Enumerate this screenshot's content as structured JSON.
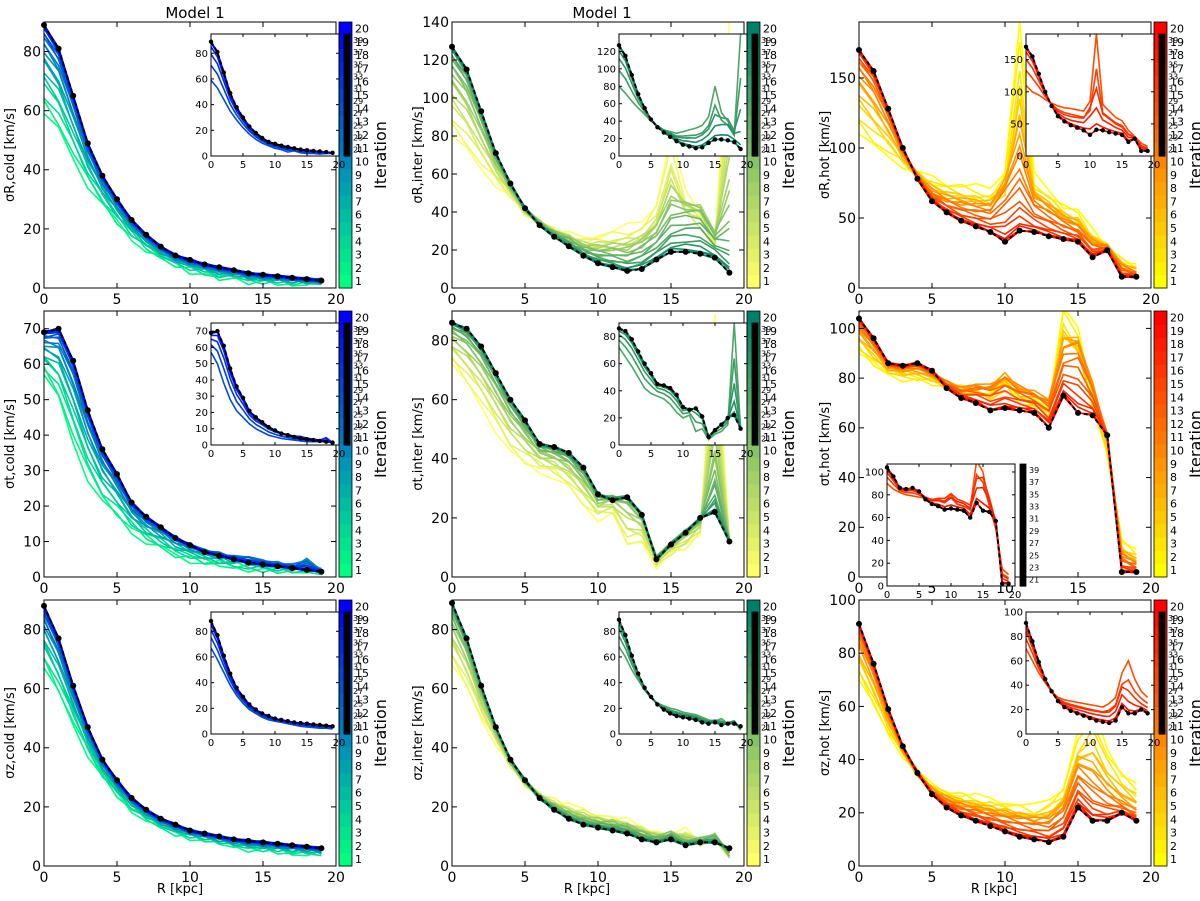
{
  "figure": {
    "col_titles": [
      "Model 1",
      "Model 1",
      ""
    ],
    "xlabel": "R [kpc]",
    "colorbar_label": "Iteration",
    "main_cbar_ticks": [
      "1",
      "2",
      "3",
      "4",
      "5",
      "6",
      "7",
      "8",
      "9",
      "10",
      "11",
      "12",
      "13",
      "14",
      "15",
      "16",
      "17",
      "18",
      "19",
      "20"
    ],
    "inset_cbar_ticks": [
      "21",
      "23",
      "25",
      "27",
      "29",
      "31",
      "33",
      "35",
      "37",
      "39"
    ],
    "x_ticks": [
      "0",
      "5",
      "10",
      "15",
      "20"
    ],
    "colormaps": {
      "cold": [
        "#00ff80",
        "#0000ff"
      ],
      "inter": [
        "#ffff66",
        "#008066"
      ],
      "hot": [
        "#ffff00",
        "#ff0000"
      ]
    },
    "final_line_color": "#000000"
  },
  "chart_data": [
    {
      "type": "line",
      "id": "sigmaR-cold",
      "component": "cold",
      "ylabel": "σR,cold [km/s]",
      "xlim": [
        0,
        20
      ],
      "ylim": [
        0,
        90
      ],
      "yticks": [
        0,
        20,
        40,
        60,
        80
      ],
      "x": [
        0,
        1,
        2,
        3,
        4,
        5,
        6,
        7,
        8,
        9,
        10,
        11,
        12,
        13,
        14,
        15,
        16,
        17,
        18,
        19
      ],
      "final": [
        89,
        81,
        65,
        49,
        38,
        30,
        23,
        18,
        14,
        11,
        9.5,
        8,
        7,
        6,
        5,
        4.5,
        4,
        3.5,
        3,
        2.5
      ],
      "first_iteration": [
        59,
        53,
        44,
        35,
        28,
        22,
        17,
        13,
        10,
        8,
        6,
        5,
        3,
        4,
        2.5,
        2,
        2,
        1.5,
        2,
        2
      ],
      "inset": {
        "ylim": [
          0,
          95
        ],
        "yticks": [
          0,
          20,
          40,
          60,
          80
        ]
      }
    },
    {
      "type": "line",
      "id": "sigmaR-inter",
      "component": "inter",
      "ylabel": "σR,inter [km/s]",
      "xlim": [
        0,
        20
      ],
      "ylim": [
        0,
        140
      ],
      "yticks": [
        0,
        20,
        40,
        60,
        80,
        100,
        120,
        140
      ],
      "x": [
        0,
        1,
        2,
        3,
        4,
        5,
        6,
        7,
        8,
        9,
        10,
        11,
        12,
        13,
        14,
        15,
        16,
        17,
        18,
        19
      ],
      "final": [
        127,
        115,
        93,
        71,
        55,
        42,
        33,
        27,
        22,
        17,
        13,
        11,
        9,
        10,
        15,
        19,
        19,
        18,
        16,
        8
      ],
      "first_iteration": [
        80,
        72,
        63,
        55,
        48,
        40,
        35,
        30,
        28,
        26,
        28,
        30,
        32,
        35,
        45,
        80,
        50,
        40,
        25,
        140
      ],
      "extreme_iteration": [
        127,
        115,
        93,
        71,
        55,
        42,
        34,
        30,
        28,
        22,
        20,
        20,
        19,
        25,
        30,
        40,
        55,
        60,
        40,
        15
      ],
      "inset": {
        "ylim": [
          0,
          140
        ],
        "yticks": [
          0,
          20,
          40,
          60,
          80,
          100,
          120
        ]
      }
    },
    {
      "type": "line",
      "id": "sigmaR-hot",
      "component": "hot",
      "ylabel": "σR,hot [km/s]",
      "xlim": [
        0,
        20
      ],
      "ylim": [
        0,
        190
      ],
      "yticks": [
        0,
        50,
        100,
        150
      ],
      "x": [
        0,
        1,
        2,
        3,
        4,
        5,
        6,
        7,
        8,
        9,
        10,
        11,
        12,
        13,
        14,
        15,
        16,
        17,
        18,
        19
      ],
      "final": [
        170,
        155,
        128,
        100,
        78,
        62,
        54,
        48,
        44,
        40,
        33,
        41,
        40,
        37,
        35,
        33,
        22,
        27,
        8,
        8
      ],
      "first_iteration": [
        110,
        100,
        95,
        88,
        82,
        78,
        75,
        74,
        72,
        70,
        85,
        190,
        80,
        70,
        60,
        55,
        40,
        30,
        20,
        15
      ],
      "extreme_iteration": [
        170,
        155,
        128,
        100,
        80,
        68,
        62,
        60,
        60,
        62,
        95,
        80,
        70,
        62,
        52,
        45,
        35,
        30,
        18,
        10
      ],
      "inset": {
        "ylim": [
          0,
          190
        ],
        "yticks": [
          0,
          50,
          100,
          150
        ]
      }
    },
    {
      "type": "line",
      "id": "sigmat-cold",
      "component": "cold",
      "ylabel": "σt,cold [km/s]",
      "xlim": [
        0,
        20
      ],
      "ylim": [
        0,
        75
      ],
      "yticks": [
        0,
        10,
        20,
        30,
        40,
        50,
        60,
        70
      ],
      "x": [
        0,
        1,
        2,
        3,
        4,
        5,
        6,
        7,
        8,
        9,
        10,
        11,
        12,
        13,
        14,
        15,
        16,
        17,
        18,
        19
      ],
      "final": [
        69,
        70,
        61,
        47,
        36,
        29,
        21,
        17,
        14,
        11,
        9,
        7,
        6,
        5,
        4,
        3.5,
        3,
        2.5,
        2,
        1.5
      ],
      "first_iteration": [
        57,
        50,
        38,
        28,
        21,
        17,
        13,
        10,
        8,
        6,
        5,
        4,
        3.5,
        3,
        2.5,
        2,
        2,
        2,
        2,
        1.5
      ],
      "extreme_iteration": [
        69,
        70,
        61,
        47,
        36,
        29,
        21,
        17,
        15,
        12,
        10,
        9,
        8,
        7,
        8,
        6,
        5,
        4,
        8,
        1.5
      ],
      "inset": {
        "ylim": [
          0,
          75
        ],
        "yticks": [
          0,
          10,
          20,
          30,
          40,
          50,
          60,
          70
        ]
      }
    },
    {
      "type": "line",
      "id": "sigmat-inter",
      "component": "inter",
      "ylabel": "σt,inter [km/s]",
      "xlim": [
        0,
        20
      ],
      "ylim": [
        0,
        90
      ],
      "yticks": [
        0,
        20,
        40,
        60,
        80
      ],
      "x": [
        0,
        1,
        2,
        3,
        4,
        5,
        6,
        7,
        8,
        9,
        10,
        11,
        12,
        13,
        14,
        15,
        16,
        17,
        18,
        19
      ],
      "final": [
        86,
        84,
        78,
        69,
        60,
        53,
        45,
        44,
        42,
        37,
        28,
        26,
        27,
        21,
        6,
        11,
        15,
        20,
        22,
        12
      ],
      "first_iteration": [
        72,
        65,
        58,
        50,
        42,
        38,
        36,
        34,
        30,
        24,
        20,
        22,
        10,
        12,
        4,
        8,
        10,
        15,
        90,
        12
      ],
      "extreme_iteration": [
        86,
        84,
        78,
        69,
        60,
        53,
        45,
        44,
        42,
        37,
        28,
        30,
        32,
        24,
        8,
        13,
        18,
        20,
        25,
        12
      ],
      "inset": {
        "ylim": [
          0,
          90
        ],
        "yticks": [
          0,
          20,
          40,
          60,
          80
        ]
      }
    },
    {
      "type": "line",
      "id": "sigmat-hot",
      "component": "hot",
      "ylabel": "σt,hot [km/s]",
      "xlim": [
        0,
        20
      ],
      "ylim": [
        0,
        107
      ],
      "yticks": [
        0,
        20,
        40,
        60,
        80,
        100
      ],
      "x": [
        0,
        1,
        2,
        3,
        4,
        5,
        6,
        7,
        8,
        9,
        10,
        11,
        12,
        13,
        14,
        15,
        16,
        17,
        18,
        19
      ],
      "final": [
        104,
        96,
        86,
        85,
        86,
        83,
        76,
        72,
        70,
        67,
        68,
        67,
        66,
        60,
        73,
        66,
        65,
        57,
        2,
        2
      ],
      "first_iteration": [
        90,
        85,
        82,
        80,
        79,
        78,
        77,
        76,
        76,
        74,
        80,
        72,
        70,
        68,
        110,
        100,
        70,
        50,
        15,
        10
      ],
      "extreme_iteration": [
        104,
        96,
        86,
        85,
        86,
        83,
        80,
        78,
        82,
        85,
        90,
        85,
        82,
        80,
        95,
        110,
        90,
        60,
        10,
        5
      ],
      "inset": {
        "ylim": [
          0,
          107
        ],
        "yticks": [
          0,
          20,
          40,
          60,
          80,
          100
        ]
      }
    },
    {
      "type": "line",
      "id": "sigmaz-cold",
      "component": "cold",
      "ylabel": "σz,cold [km/s]",
      "xlim": [
        0,
        20
      ],
      "ylim": [
        0,
        90
      ],
      "yticks": [
        0,
        20,
        40,
        60,
        80
      ],
      "x": [
        0,
        1,
        2,
        3,
        4,
        5,
        6,
        7,
        8,
        9,
        10,
        11,
        12,
        13,
        14,
        15,
        16,
        17,
        18,
        19
      ],
      "final": [
        88,
        77,
        61,
        47,
        36,
        29,
        23,
        19,
        16,
        14,
        12,
        11,
        10,
        9,
        8.5,
        8,
        7.5,
        7,
        6.5,
        6
      ],
      "first_iteration": [
        67,
        58,
        48,
        38,
        30,
        24,
        19,
        16,
        13,
        11,
        10,
        9,
        8,
        7,
        6,
        5.5,
        5,
        4.5,
        4.5,
        4
      ],
      "inset": {
        "ylim": [
          0,
          95
        ],
        "yticks": [
          0,
          20,
          40,
          60,
          80
        ]
      }
    },
    {
      "type": "line",
      "id": "sigmaz-inter",
      "component": "inter",
      "ylabel": "σz,inter [km/s]",
      "xlim": [
        0,
        20
      ],
      "ylim": [
        0,
        90
      ],
      "yticks": [
        0,
        20,
        40,
        60,
        80
      ],
      "x": [
        0,
        1,
        2,
        3,
        4,
        5,
        6,
        7,
        8,
        9,
        10,
        11,
        12,
        13,
        14,
        15,
        16,
        17,
        18,
        19
      ],
      "final": [
        89,
        77,
        61,
        47,
        36,
        29,
        23,
        19,
        16,
        14,
        13,
        12,
        11,
        9,
        8,
        9,
        7,
        8,
        8,
        6
      ],
      "first_iteration": [
        68,
        60,
        50,
        42,
        34,
        28,
        24,
        22,
        20,
        19,
        17,
        16,
        15,
        13,
        11,
        10,
        12,
        8,
        10,
        3
      ],
      "extreme_iteration": [
        89,
        77,
        61,
        47,
        36,
        29,
        23,
        20,
        18,
        16,
        15,
        15,
        14,
        12,
        10,
        13,
        8,
        10,
        12,
        3
      ],
      "inset": {
        "ylim": [
          0,
          95
        ],
        "yticks": [
          0,
          20,
          40,
          60,
          80
        ]
      }
    },
    {
      "type": "line",
      "id": "sigmaz-hot",
      "component": "hot",
      "ylabel": "σz,hot [km/s]",
      "xlim": [
        0,
        20
      ],
      "ylim": [
        0,
        100
      ],
      "yticks": [
        0,
        20,
        40,
        60,
        80,
        100
      ],
      "x": [
        0,
        1,
        2,
        3,
        4,
        5,
        6,
        7,
        8,
        9,
        10,
        11,
        12,
        13,
        14,
        15,
        16,
        17,
        18,
        19
      ],
      "final": [
        91,
        76,
        59,
        45,
        35,
        27,
        22,
        19,
        17,
        15,
        13,
        11,
        10,
        9,
        11,
        22,
        17,
        17,
        20,
        17
      ],
      "first_iteration": [
        70,
        60,
        50,
        42,
        35,
        30,
        28,
        27,
        26,
        25,
        24,
        23,
        22,
        25,
        30,
        50,
        60,
        45,
        35,
        30
      ],
      "extreme_iteration": [
        91,
        76,
        59,
        45,
        35,
        28,
        25,
        23,
        22,
        21,
        20,
        20,
        19,
        18,
        25,
        40,
        28,
        25,
        20,
        18
      ],
      "inset": {
        "ylim": [
          0,
          100
        ],
        "yticks": [
          0,
          20,
          40,
          60,
          80,
          100
        ]
      }
    }
  ]
}
